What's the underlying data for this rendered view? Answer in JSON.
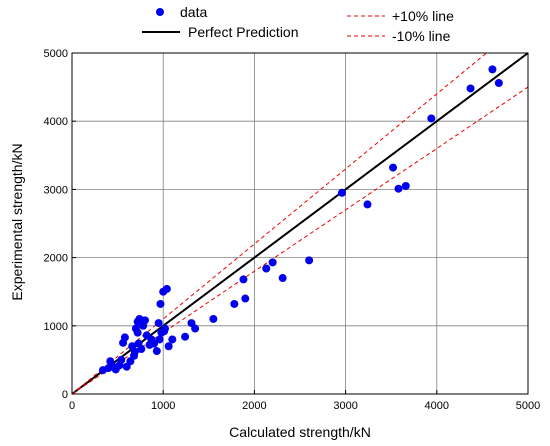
{
  "chart_data": {
    "type": "scatter",
    "title": "",
    "xlabel": "Calculated strength/kN",
    "ylabel": "Experimental strength/kN",
    "xlim": [
      0,
      5000
    ],
    "ylim": [
      0,
      5000
    ],
    "x_ticks": [
      "0",
      "1000",
      "2000",
      "3000",
      "4000",
      "5000"
    ],
    "y_ticks": [
      "0",
      "1000",
      "2000",
      "3000",
      "4000",
      "5000"
    ],
    "grid": true,
    "legend_placement": "top",
    "legend": {
      "data": "data",
      "perfect": "Perfect Prediction",
      "plus10": "+10% line",
      "minus10": "-10%  line"
    },
    "colors": {
      "data": "#0000ee",
      "perfect": "#000000",
      "bounds": "#ee0000"
    },
    "lines": [
      {
        "key": "perfect",
        "slope": 1.0,
        "style": "solid"
      },
      {
        "key": "plus10",
        "slope": 1.1,
        "style": "dashed"
      },
      {
        "key": "minus10",
        "slope": 0.9,
        "style": "dashed"
      }
    ],
    "series": [
      {
        "name": "data",
        "points": [
          [
            340,
            350
          ],
          [
            400,
            380
          ],
          [
            420,
            480
          ],
          [
            450,
            400
          ],
          [
            480,
            360
          ],
          [
            520,
            420
          ],
          [
            540,
            500
          ],
          [
            560,
            750
          ],
          [
            580,
            830
          ],
          [
            600,
            400
          ],
          [
            640,
            480
          ],
          [
            660,
            700
          ],
          [
            680,
            560
          ],
          [
            690,
            620
          ],
          [
            700,
            960
          ],
          [
            720,
            1060
          ],
          [
            720,
            900
          ],
          [
            730,
            740
          ],
          [
            740,
            1100
          ],
          [
            760,
            660
          ],
          [
            780,
            1000
          ],
          [
            800,
            1080
          ],
          [
            820,
            860
          ],
          [
            850,
            720
          ],
          [
            870,
            800
          ],
          [
            900,
            740
          ],
          [
            930,
            630
          ],
          [
            950,
            1040
          ],
          [
            960,
            800
          ],
          [
            970,
            1320
          ],
          [
            980,
            900
          ],
          [
            1000,
            1500
          ],
          [
            1010,
            920
          ],
          [
            1020,
            960
          ],
          [
            1040,
            1540
          ],
          [
            1060,
            700
          ],
          [
            1100,
            800
          ],
          [
            1240,
            840
          ],
          [
            1310,
            1040
          ],
          [
            1350,
            960
          ],
          [
            1550,
            1100
          ],
          [
            1780,
            1320
          ],
          [
            1880,
            1680
          ],
          [
            1900,
            1400
          ],
          [
            2130,
            1840
          ],
          [
            2200,
            1930
          ],
          [
            2310,
            1700
          ],
          [
            2600,
            1960
          ],
          [
            2960,
            2950
          ],
          [
            3240,
            2780
          ],
          [
            3520,
            3320
          ],
          [
            3580,
            3010
          ],
          [
            3660,
            3050
          ],
          [
            3940,
            4040
          ],
          [
            4370,
            4480
          ],
          [
            4610,
            4760
          ],
          [
            4680,
            4560
          ]
        ]
      }
    ]
  }
}
